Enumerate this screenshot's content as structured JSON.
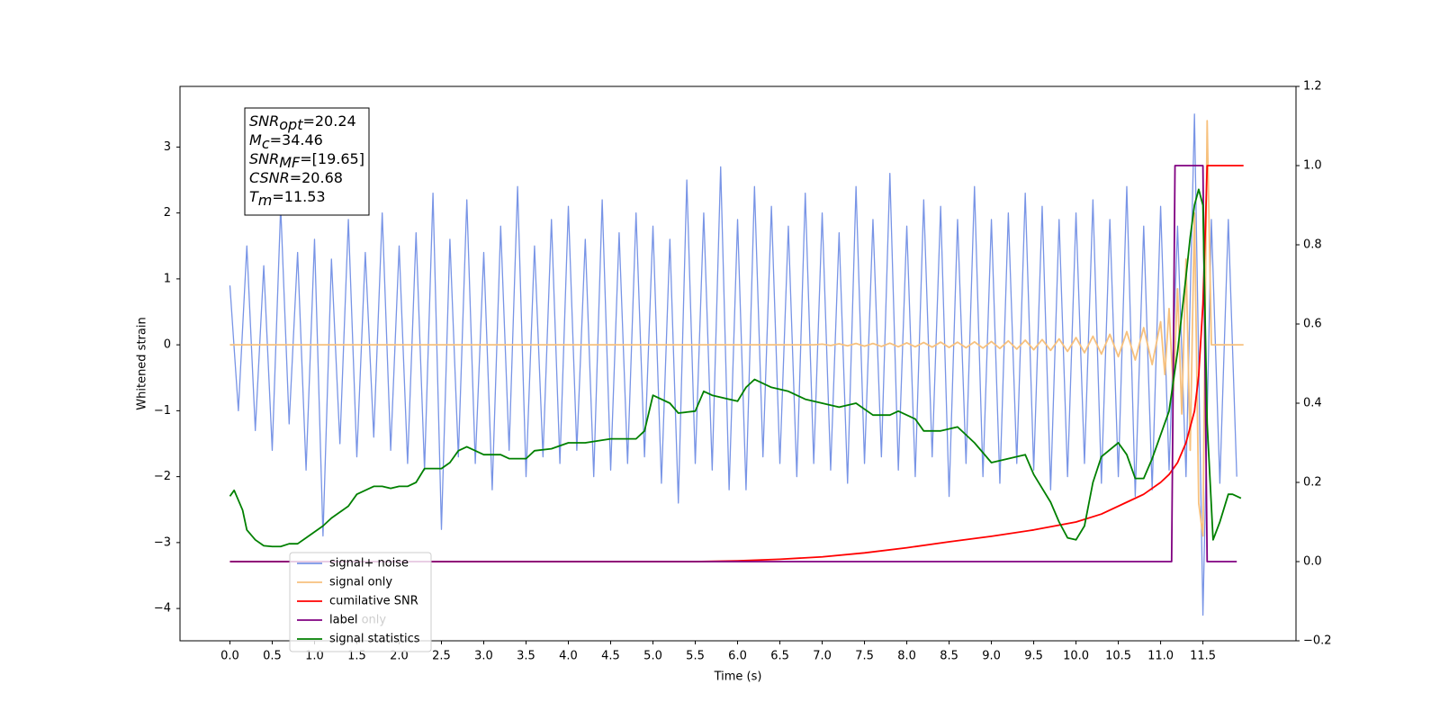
{
  "chart_data": {
    "type": "line",
    "xlabel": "Time (s)",
    "ylabel": "Whitened strain",
    "xlim": [
      -0.59,
      12.6
    ],
    "ylim": [
      -4.49,
      3.92
    ],
    "y2lim": [
      -0.2,
      1.2
    ],
    "xticks": [
      {
        "value": 0,
        "label": "0.0"
      },
      0.5,
      {
        "value": 1,
        "label": "1.0"
      },
      1.5,
      {
        "value": 2,
        "label": "2.0"
      },
      2.5,
      {
        "value": 3,
        "label": "3.0"
      },
      3.5,
      {
        "value": 4,
        "label": "4.0"
      },
      4.5,
      {
        "value": 5,
        "label": "5.0"
      },
      5.5,
      {
        "value": 6,
        "label": "6.0"
      },
      6.5,
      {
        "value": 7,
        "label": "7.0"
      },
      7.5,
      {
        "value": 8,
        "label": "8.0"
      },
      8.5,
      {
        "value": 9,
        "label": "9.0"
      },
      9.5,
      {
        "value": 10,
        "label": "10.0"
      },
      10.5,
      {
        "value": 11,
        "label": "11.0"
      },
      11.5
    ],
    "yticks": [
      {
        "value": -4,
        "label": "−4"
      },
      {
        "value": -3,
        "label": "−3"
      },
      {
        "value": -2,
        "label": "−2"
      },
      {
        "value": -1,
        "label": "−1"
      },
      0,
      1,
      2,
      3
    ],
    "y2ticks": [
      {
        "value": -0.2,
        "label": "−0.2"
      },
      {
        "value": 0,
        "label": "0.0"
      },
      0.2,
      0.4,
      0.6,
      0.8,
      {
        "value": 1,
        "label": "1.0"
      },
      1.2
    ],
    "legend": "lower left",
    "background_legend_labels": [
      "label only"
    ],
    "annotation": [
      {
        "main": "SNR",
        "sub": "opt",
        "rest": "=20.24"
      },
      {
        "main": "M",
        "sub": "c",
        "rest": "=34.46"
      },
      {
        "main": "SNR",
        "sub": "MF",
        "rest": "=[19.65]"
      },
      {
        "main": "CSNR",
        "rest": "=20.68"
      },
      {
        "main": "T",
        "sub": "m",
        "rest": "=11.53"
      }
    ],
    "series": [
      {
        "name": "signal+ noise",
        "color": "#7894e6",
        "x": [
          0,
          0.1,
          0.2,
          0.3,
          0.4,
          0.5,
          0.6,
          0.7,
          0.8,
          0.9,
          1,
          1.1,
          1.2,
          1.3,
          1.4,
          1.5,
          1.6,
          1.7,
          1.8,
          1.9,
          2,
          2.1,
          2.2,
          2.3,
          2.4,
          2.5,
          2.6,
          2.7,
          2.8,
          2.9,
          3,
          3.1,
          3.2,
          3.3,
          3.4,
          3.5,
          3.6,
          3.7,
          3.8,
          3.9,
          4,
          4.1,
          4.2,
          4.3,
          4.4,
          4.5,
          4.6,
          4.7,
          4.8,
          4.9,
          5,
          5.1,
          5.2,
          5.3,
          5.4,
          5.5,
          5.6,
          5.7,
          5.8,
          5.9,
          6,
          6.1,
          6.2,
          6.3,
          6.4,
          6.5,
          6.6,
          6.7,
          6.8,
          6.9,
          7,
          7.1,
          7.2,
          7.3,
          7.4,
          7.5,
          7.6,
          7.7,
          7.8,
          7.9,
          8,
          8.1,
          8.2,
          8.3,
          8.4,
          8.5,
          8.6,
          8.7,
          8.8,
          8.9,
          9,
          9.1,
          9.2,
          9.3,
          9.4,
          9.5,
          9.6,
          9.7,
          9.8,
          9.9,
          10,
          10.1,
          10.2,
          10.3,
          10.4,
          10.5,
          10.6,
          10.7,
          10.8,
          10.9,
          11,
          11.1,
          11.2,
          11.3,
          11.4,
          11.5,
          11.6,
          11.7,
          11.8,
          11.9
        ],
        "values": [
          0.9,
          -1.0,
          1.5,
          -1.3,
          1.2,
          -1.6,
          2.1,
          -1.2,
          1.4,
          -1.9,
          1.6,
          -2.9,
          1.3,
          -1.5,
          1.9,
          -1.7,
          1.4,
          -1.4,
          2.0,
          -1.6,
          1.5,
          -1.8,
          1.7,
          -1.9,
          2.3,
          -2.8,
          1.6,
          -1.7,
          2.2,
          -1.8,
          1.4,
          -2.2,
          1.8,
          -1.6,
          2.4,
          -2.0,
          1.5,
          -1.7,
          1.9,
          -1.8,
          2.1,
          -1.6,
          1.6,
          -2.0,
          2.2,
          -1.9,
          1.7,
          -1.8,
          2.0,
          -1.7,
          1.8,
          -2.1,
          1.6,
          -2.4,
          2.5,
          -1.8,
          2.0,
          -1.9,
          2.7,
          -2.2,
          1.9,
          -2.2,
          2.4,
          -1.7,
          2.1,
          -1.8,
          1.8,
          -2.0,
          2.3,
          -1.8,
          2.0,
          -1.9,
          1.7,
          -2.1,
          2.4,
          -1.8,
          1.9,
          -1.7,
          2.6,
          -1.9,
          1.8,
          -2.0,
          2.2,
          -1.7,
          2.1,
          -2.3,
          1.9,
          -1.8,
          2.4,
          -2.0,
          1.9,
          -2.1,
          2.0,
          -1.8,
          2.3,
          -1.9,
          2.1,
          -2.2,
          1.9,
          -2.0,
          2.0,
          -1.8,
          2.2,
          -2.1,
          1.9,
          -2.0,
          2.4,
          -2.3,
          1.8,
          -2.2,
          2.1,
          -1.9,
          1.8,
          -2.0,
          3.5,
          -4.1,
          1.9,
          -2.1,
          1.9,
          -2.0
        ]
      },
      {
        "name": "signal only",
        "color": "#f7c17e",
        "x": [
          0,
          6.9,
          7,
          7.1,
          7.2,
          7.3,
          7.4,
          7.5,
          7.6,
          7.7,
          7.8,
          7.9,
          8,
          8.1,
          8.2,
          8.3,
          8.4,
          8.5,
          8.6,
          8.7,
          8.8,
          8.9,
          9,
          9.1,
          9.2,
          9.3,
          9.4,
          9.5,
          9.6,
          9.7,
          9.8,
          9.9,
          10,
          10.1,
          10.2,
          10.3,
          10.4,
          10.5,
          10.6,
          10.7,
          10.8,
          10.9,
          11,
          11.05,
          11.1,
          11.15,
          11.2,
          11.25,
          11.3,
          11.35,
          11.4,
          11.45,
          11.5,
          11.55,
          11.6,
          11.98
        ],
        "values": [
          0,
          0,
          0.01,
          -0.01,
          0.015,
          -0.015,
          0.02,
          -0.02,
          0.02,
          -0.025,
          0.025,
          -0.03,
          0.03,
          -0.03,
          0.035,
          -0.035,
          0.04,
          -0.04,
          0.04,
          -0.045,
          0.045,
          -0.05,
          0.05,
          -0.055,
          0.06,
          -0.065,
          0.07,
          -0.075,
          0.08,
          -0.085,
          0.09,
          -0.1,
          0.11,
          -0.12,
          0.13,
          -0.14,
          0.16,
          -0.18,
          0.2,
          -0.23,
          0.26,
          -0.3,
          0.35,
          -0.45,
          0.55,
          -0.7,
          0.85,
          -1.05,
          1.3,
          -1.6,
          2.0,
          -2.4,
          -2.9,
          3.4,
          0,
          0
        ]
      },
      {
        "name": "cumilative SNR",
        "color": "red",
        "axis": "y2",
        "x": [
          0,
          5.5,
          6,
          6.5,
          7,
          7.5,
          8,
          8.5,
          9,
          9.5,
          10,
          10.3,
          10.6,
          10.8,
          11,
          11.1,
          11.2,
          11.3,
          11.4,
          11.45,
          11.5,
          11.53,
          11.55,
          11.98
        ],
        "values": [
          0,
          0,
          0.002,
          0.006,
          0.012,
          0.022,
          0.035,
          0.05,
          0.064,
          0.08,
          0.1,
          0.12,
          0.15,
          0.17,
          0.2,
          0.22,
          0.25,
          0.3,
          0.38,
          0.47,
          0.65,
          0.85,
          1.0,
          1.0
        ]
      },
      {
        "name": "label",
        "color": "purple",
        "axis": "y2",
        "x": [
          0,
          11.13,
          11.17,
          11.5,
          11.55,
          11.9
        ],
        "values": [
          0,
          0,
          1,
          1,
          0,
          0
        ]
      },
      {
        "name": "signal statistics",
        "color": "green",
        "axis": "y2",
        "x": [
          0,
          0.05,
          0.15,
          0.2,
          0.3,
          0.4,
          0.5,
          0.6,
          0.7,
          0.8,
          0.9,
          1,
          1.1,
          1.2,
          1.3,
          1.4,
          1.5,
          1.6,
          1.7,
          1.8,
          1.9,
          2,
          2.1,
          2.2,
          2.3,
          2.5,
          2.6,
          2.7,
          2.8,
          2.9,
          3,
          3.2,
          3.3,
          3.5,
          3.6,
          3.8,
          4,
          4.2,
          4.5,
          4.8,
          4.9,
          5,
          5.2,
          5.3,
          5.5,
          5.6,
          5.7,
          5.9,
          6,
          6.1,
          6.2,
          6.4,
          6.6,
          6.8,
          7,
          7.2,
          7.4,
          7.6,
          7.8,
          7.9,
          8.1,
          8.2,
          8.4,
          8.6,
          8.8,
          9,
          9.2,
          9.4,
          9.5,
          9.7,
          9.8,
          9.9,
          10,
          10.1,
          10.2,
          10.3,
          10.5,
          10.6,
          10.7,
          10.8,
          10.9,
          11,
          11.1,
          11.2,
          11.3,
          11.35,
          11.4,
          11.45,
          11.5,
          11.55,
          11.62,
          11.7,
          11.8,
          11.85,
          11.95
        ],
        "values": [
          0.165,
          0.18,
          0.13,
          0.08,
          0.055,
          0.04,
          0.038,
          0.038,
          0.045,
          0.045,
          0.06,
          0.075,
          0.09,
          0.11,
          0.125,
          0.14,
          0.17,
          0.18,
          0.19,
          0.19,
          0.185,
          0.19,
          0.19,
          0.2,
          0.235,
          0.235,
          0.25,
          0.28,
          0.29,
          0.28,
          0.27,
          0.27,
          0.26,
          0.26,
          0.28,
          0.285,
          0.3,
          0.3,
          0.31,
          0.31,
          0.33,
          0.42,
          0.4,
          0.375,
          0.38,
          0.43,
          0.42,
          0.41,
          0.405,
          0.44,
          0.46,
          0.44,
          0.43,
          0.41,
          0.4,
          0.39,
          0.4,
          0.37,
          0.37,
          0.38,
          0.36,
          0.33,
          0.33,
          0.34,
          0.3,
          0.25,
          0.26,
          0.27,
          0.22,
          0.15,
          0.1,
          0.06,
          0.055,
          0.09,
          0.2,
          0.265,
          0.3,
          0.27,
          0.21,
          0.21,
          0.26,
          0.32,
          0.38,
          0.53,
          0.72,
          0.82,
          0.9,
          0.94,
          0.9,
          0.35,
          0.055,
          0.1,
          0.17,
          0.17,
          0.16
        ]
      }
    ]
  }
}
